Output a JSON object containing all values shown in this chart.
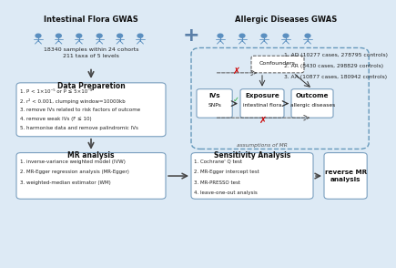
{
  "bg_color": "#ddeaf5",
  "box_facecolor": "#ffffff",
  "box_edge": "#7a9fbf",
  "title_left": "Intestinal Flora GWAS",
  "title_right": "Allergic Diseases GWAS",
  "plus_sign": "+",
  "left_sub": "18340 samples within 24 cohorts\n211 taxa of 5 levels",
  "right_sub_lines": [
    "1. AD (10277 cases, 278795 controls)",
    "2. AR (8430 cases, 298829 controls)",
    "3. AA (10877 cases, 180942 controls)"
  ],
  "data_prep_title": "Data Preparetion",
  "data_prep_items": [
    "1. P < 1×10⁻⁵ or P ≤ 5×10⁻⁸",
    "2. r² < 0.001, clumping window=10000kb",
    "3. remove IVs related to risk factors of outcome",
    "4. remove weak IVs (F ≤ 10)",
    "5. harmonise data and remove palindromic IVs"
  ],
  "mr_title": "MR analysis",
  "mr_items": [
    "1. inverse-variance weighted model (IVW)",
    "2. MR-Egger regression analysis (MR-Egger)",
    "3. weighted-median estimator (WM)"
  ],
  "sens_title": "Sensitivity Analysis",
  "sens_items": [
    "1. Cochrane' Q test",
    "2. MR-Egger intercept test",
    "3. MR-PRESSO test",
    "4. leave-one-out analysis"
  ],
  "reverse_title": "reverse MR\nanalysis",
  "ivs_label1": "IVs",
  "ivs_label2": "SNPs",
  "exposure_label1": "Exposure",
  "exposure_label2": "intestinal flora",
  "outcome_label1": "Outcome",
  "outcome_label2": "allergic diseases",
  "confounders_label": "Confounders",
  "assumptions_label": "assumptions of MR",
  "person_color": "#5a8fc0",
  "arrow_color": "#444444",
  "red_x_color": "#cc0000",
  "green_check_color": "#22aa33",
  "dashed_border_color": "#6699bb"
}
